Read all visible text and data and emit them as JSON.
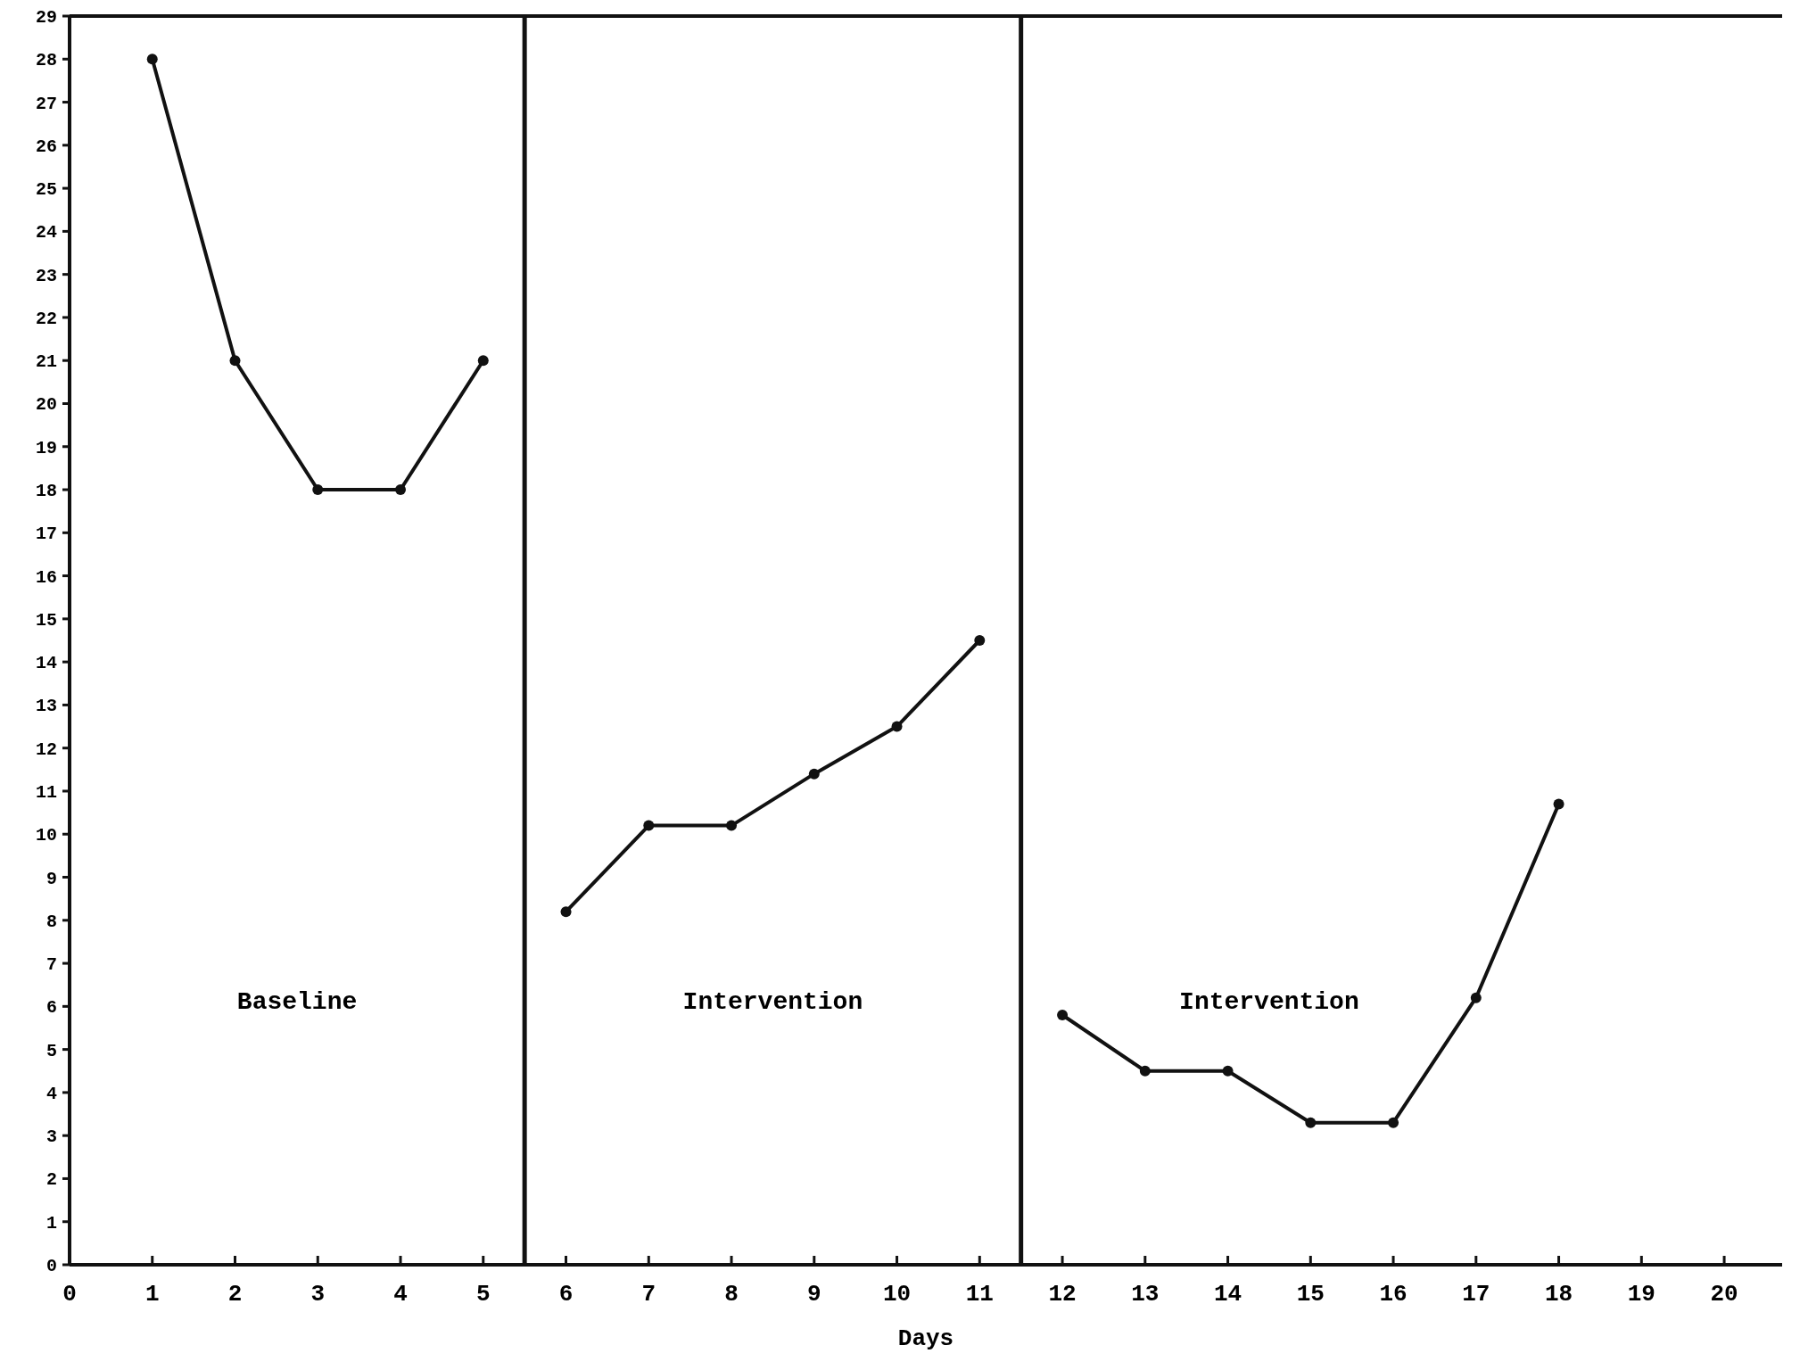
{
  "chart_data": {
    "type": "line",
    "xlabel": "Days",
    "series": [
      {
        "color": "#111111",
        "x": [
          1,
          2,
          3,
          4,
          5
        ],
        "values": [
          28,
          21,
          18,
          18,
          21
        ]
      },
      {
        "color": "#111111",
        "x": [
          6,
          7,
          8,
          9,
          10,
          11
        ],
        "values": [
          8.2,
          10.2,
          10.2,
          11.4,
          12.5,
          14.5
        ]
      },
      {
        "color": "#111111",
        "x": [
          12,
          13,
          14,
          15,
          16,
          17,
          18
        ],
        "values": [
          5.8,
          4.5,
          4.5,
          3.3,
          3.3,
          6.2,
          10.7
        ]
      }
    ],
    "xlim": [
      0,
      20.7
    ],
    "xticks": [
      0,
      1,
      2,
      3,
      4,
      5,
      6,
      7,
      8,
      9,
      10,
      11,
      12,
      13,
      14,
      15,
      16,
      17,
      18,
      19,
      20
    ],
    "ylim": [
      0,
      29
    ],
    "yticks": [
      0,
      1,
      2,
      3,
      4,
      5,
      6,
      7,
      8,
      9,
      10,
      11,
      12,
      13,
      14,
      15,
      16,
      17,
      18,
      19,
      20,
      21,
      22,
      23,
      24,
      25,
      26,
      27,
      28,
      29
    ],
    "ref_lines": [
      {
        "axis": "x",
        "value": 5.5,
        "color": "#111111"
      },
      {
        "axis": "x",
        "value": 11.5,
        "color": "#111111"
      }
    ],
    "annotations": [
      "Baseline",
      "Intervention",
      "Intervention"
    ],
    "marker": "circle",
    "line_style": "solid",
    "grid": false
  }
}
